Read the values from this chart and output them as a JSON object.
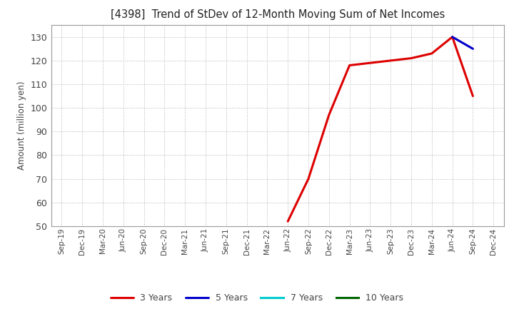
{
  "title": "[4398]  Trend of StDev of 12-Month Moving Sum of Net Incomes",
  "ylabel": "Amount (million yen)",
  "ylim": [
    50,
    135
  ],
  "yticks": [
    50,
    60,
    70,
    80,
    90,
    100,
    110,
    120,
    130
  ],
  "background_color": "#ffffff",
  "grid_color": "#aaaaaa",
  "legend_entries": [
    "3 Years",
    "5 Years",
    "7 Years",
    "10 Years"
  ],
  "x_labels": [
    "Sep-19",
    "Dec-19",
    "Mar-20",
    "Jun-20",
    "Sep-20",
    "Dec-20",
    "Mar-21",
    "Jun-21",
    "Sep-21",
    "Dec-21",
    "Mar-22",
    "Jun-22",
    "Sep-22",
    "Dec-22",
    "Mar-23",
    "Jun-23",
    "Sep-23",
    "Dec-23",
    "Mar-24",
    "Jun-24",
    "Sep-24",
    "Dec-24"
  ],
  "series_3y": {
    "color": "#dd0000",
    "linewidth": 2.2,
    "y": [
      null,
      null,
      null,
      null,
      null,
      null,
      null,
      null,
      null,
      null,
      null,
      52,
      70,
      97,
      118,
      119,
      120,
      121,
      123,
      130,
      105,
      null
    ]
  },
  "series_5y": {
    "color": "#0000cc",
    "linewidth": 2.2,
    "y": [
      null,
      null,
      null,
      null,
      null,
      null,
      null,
      null,
      null,
      null,
      null,
      null,
      null,
      null,
      null,
      null,
      null,
      null,
      null,
      130,
      125,
      null
    ]
  },
  "series_7y": {
    "color": "#00cccc",
    "linewidth": 2.2,
    "y": [
      null,
      null,
      null,
      null,
      null,
      null,
      null,
      null,
      null,
      null,
      null,
      null,
      null,
      null,
      null,
      null,
      null,
      null,
      null,
      null,
      null,
      null
    ]
  },
  "series_10y": {
    "color": "#006600",
    "linewidth": 2.2,
    "y": [
      null,
      null,
      null,
      null,
      null,
      null,
      null,
      null,
      null,
      null,
      null,
      null,
      null,
      null,
      null,
      null,
      null,
      null,
      null,
      null,
      null,
      null
    ]
  }
}
